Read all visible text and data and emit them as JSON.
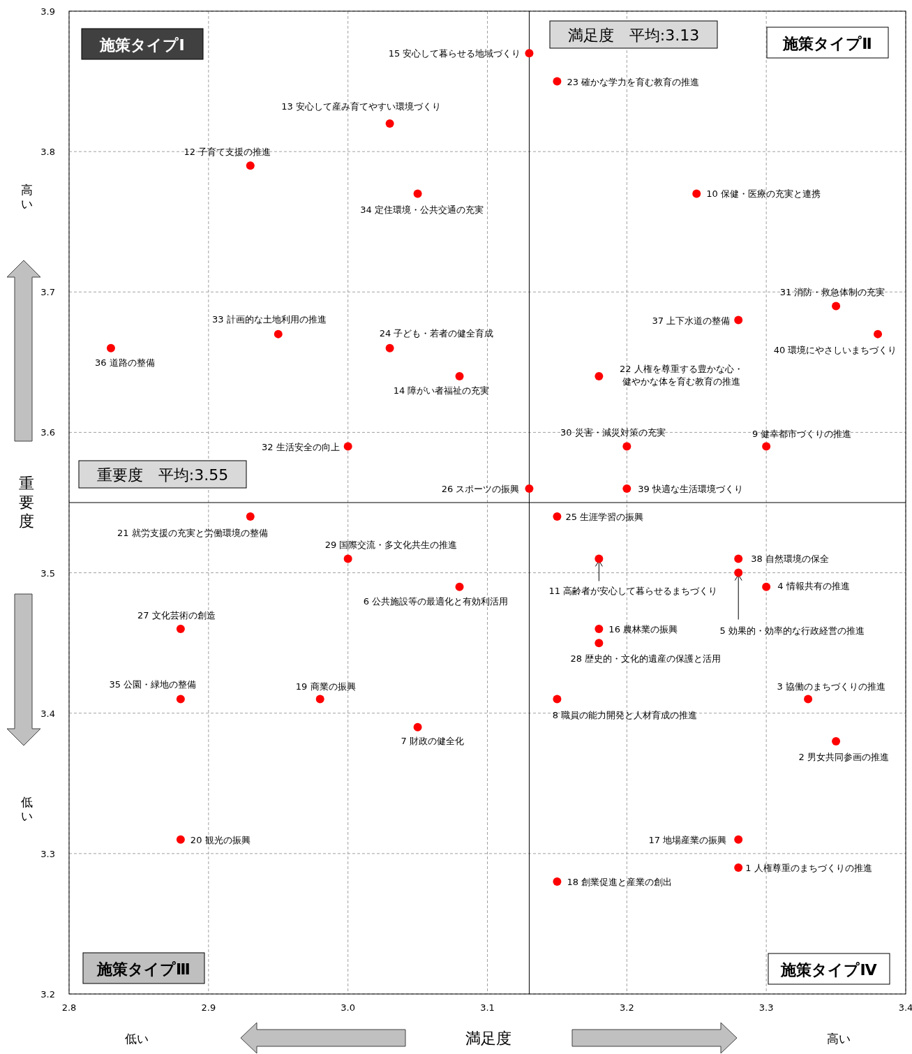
{
  "chart_data": {
    "type": "scatter",
    "xlabel": "満足度",
    "ylabel": "重要度",
    "xlim": [
      2.8,
      3.4
    ],
    "ylim": [
      3.2,
      3.9
    ],
    "xticks": [
      2.8,
      2.9,
      {
        "value": 3,
        "label": "3.0"
      },
      3.1,
      3.2,
      3.3,
      3.4
    ],
    "yticks": [
      3.2,
      3.3,
      3.4,
      3.5,
      3.6,
      3.7,
      3.8,
      3.9
    ],
    "grid": true,
    "marker": "circle",
    "series": [
      {
        "color": "#ff0000",
        "x": [
          3.13,
          3.15,
          3.03,
          2.93,
          3.05,
          3.25,
          3.35,
          3.28,
          3.38,
          2.95,
          2.83,
          3.03,
          3.08,
          3.18,
          3.0,
          3.2,
          3.3,
          3.13,
          3.2,
          2.93,
          3.15,
          3.0,
          3.18,
          3.28,
          3.28,
          3.08,
          3.3,
          2.88,
          3.18,
          3.18,
          2.88,
          2.98,
          3.15,
          3.33,
          3.05,
          3.35,
          2.88,
          3.28,
          3.28,
          3.15
        ],
        "values": [
          3.87,
          3.85,
          3.82,
          3.79,
          3.77,
          3.77,
          3.69,
          3.68,
          3.67,
          3.67,
          3.66,
          3.66,
          3.64,
          3.64,
          3.59,
          3.59,
          3.59,
          3.56,
          3.56,
          3.54,
          3.54,
          3.51,
          3.51,
          3.51,
          3.5,
          3.49,
          3.49,
          3.46,
          3.46,
          3.45,
          3.41,
          3.41,
          3.41,
          3.41,
          3.39,
          3.38,
          3.31,
          3.31,
          3.29,
          3.28
        ]
      }
    ],
    "ref_lines": [
      {
        "axis": "x",
        "value": 3.13,
        "label": "満足度　平均:3.13",
        "color": "#000000"
      },
      {
        "axis": "y",
        "value": 3.55,
        "label": "重要度　平均:3.55",
        "color": "#000000"
      }
    ],
    "annotations": [
      "施策タイプⅠ",
      "施策タイプⅡ",
      "施策タイプⅢ",
      "施策タイプⅣ",
      "高い",
      "低い",
      "低い",
      "高い",
      {
        "text": "15 安心して暮らせる地域づくり",
        "x": 3.13,
        "y": 3.87
      },
      {
        "text": "23 確かな学力を育む教育の推進",
        "x": 3.15,
        "y": 3.85
      },
      {
        "text": "13 安心して産み育てやすい環境づくり",
        "x": 3.03,
        "y": 3.82
      },
      {
        "text": "12 子育て支援の推進",
        "x": 2.93,
        "y": 3.79
      },
      {
        "text": "34 定住環境・公共交通の充実",
        "x": 3.05,
        "y": 3.77
      },
      {
        "text": "10 保健・医療の充実と連携",
        "x": 3.25,
        "y": 3.77
      },
      {
        "text": "31 消防・救急体制の充実",
        "x": 3.35,
        "y": 3.69
      },
      {
        "text": "37 上下水道の整備",
        "x": 3.28,
        "y": 3.68
      },
      {
        "text": "40 環境にやさしいまちづくり",
        "x": 3.38,
        "y": 3.67
      },
      {
        "text": "33 計画的な土地利用の推進",
        "x": 2.95,
        "y": 3.67
      },
      {
        "text": "36 道路の整備",
        "x": 2.83,
        "y": 3.66
      },
      {
        "text": "24 子ども・若者の健全育成",
        "x": 3.03,
        "y": 3.66
      },
      {
        "text": "14 障がい者福祉の充実",
        "x": 3.08,
        "y": 3.64
      },
      {
        "text": "22 人権を尊重する豊かな心・健やかな体を育む教育の推進",
        "x": 3.18,
        "y": 3.64
      },
      {
        "text": "32 生活安全の向上",
        "x": 3.0,
        "y": 3.59
      },
      {
        "text": "30 災害・減災対策の充実",
        "x": 3.2,
        "y": 3.59
      },
      {
        "text": "9 健幸都市づくりの推進",
        "x": 3.3,
        "y": 3.59
      },
      {
        "text": "26 スポーツの振興",
        "x": 3.13,
        "y": 3.56
      },
      {
        "text": "39 快適な生活環境づくり",
        "x": 3.2,
        "y": 3.56
      },
      {
        "text": "21 就労支援の充実と労働環境の整備",
        "x": 2.93,
        "y": 3.54
      },
      {
        "text": "25 生涯学習の振興",
        "x": 3.15,
        "y": 3.54
      },
      {
        "text": "29 国際交流・多文化共生の推進",
        "x": 3.0,
        "y": 3.51
      },
      {
        "text": "11 高齢者が安心して暮らせるまちづくり",
        "x": 3.18,
        "y": 3.51
      },
      {
        "text": "38 自然環境の保全",
        "x": 3.28,
        "y": 3.51
      },
      {
        "text": "5 効果的・効率的な行政経営の推進",
        "x": 3.28,
        "y": 3.5
      },
      {
        "text": "6 公共施設等の最適化と有効利活用",
        "x": 3.08,
        "y": 3.49
      },
      {
        "text": "4 情報共有の推進",
        "x": 3.3,
        "y": 3.49
      },
      {
        "text": "27 文化芸術の創造",
        "x": 2.88,
        "y": 3.46
      },
      {
        "text": "16 農林業の振興",
        "x": 3.18,
        "y": 3.46
      },
      {
        "text": "28 歴史的・文化的遺産の保護と活用",
        "x": 3.18,
        "y": 3.45
      },
      {
        "text": "35 公園・緑地の整備",
        "x": 2.88,
        "y": 3.41
      },
      {
        "text": "19 商業の振興",
        "x": 2.98,
        "y": 3.41
      },
      {
        "text": "8 職員の能力開発と人材育成の推進",
        "x": 3.15,
        "y": 3.41
      },
      {
        "text": "3 協働のまちづくりの推進",
        "x": 3.33,
        "y": 3.41
      },
      {
        "text": "7 財政の健全化",
        "x": 3.05,
        "y": 3.39
      },
      {
        "text": "2 男女共同参画の推進",
        "x": 3.35,
        "y": 3.38
      },
      {
        "text": "20 観光の振興",
        "x": 2.88,
        "y": 3.31
      },
      {
        "text": "17 地場産業の振興",
        "x": 3.28,
        "y": 3.31
      },
      {
        "text": "1 人権尊重のまちづくりの推進",
        "x": 3.28,
        "y": 3.29
      },
      {
        "text": "18 創業促進と産業の創出",
        "x": 3.15,
        "y": 3.28
      }
    ]
  }
}
